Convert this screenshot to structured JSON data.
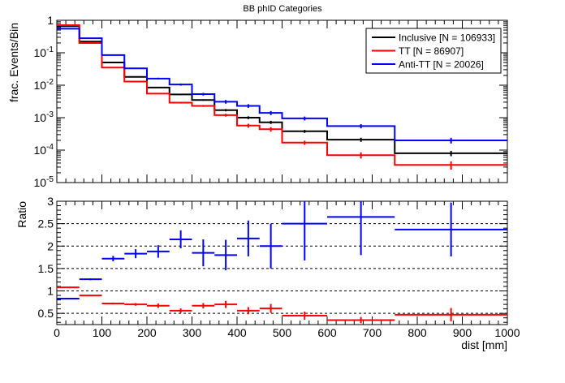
{
  "chart_data": {
    "type": "line",
    "title": "BB phID Categories",
    "xlabel": "dist [mm]",
    "bin_edges": [
      0,
      50,
      100,
      150,
      200,
      250,
      300,
      350,
      400,
      450,
      500,
      600,
      750,
      1000
    ],
    "xlim": [
      0,
      1000
    ],
    "x_ticks": [
      "0",
      "100",
      "200",
      "300",
      "400",
      "500",
      "600",
      "700",
      "800",
      "900",
      "1000"
    ],
    "top_panel": {
      "ylabel": "frac. Events/Bin",
      "ylim": [
        1e-05,
        1
      ],
      "log_y": true,
      "y_ticks": [
        "1",
        "10^-1",
        "10^-2",
        "10^-3",
        "10^-4",
        "10^-5"
      ],
      "legend_position": "top-right",
      "series": [
        {
          "name": "Inclusive [N = 106933]",
          "color": "#000000",
          "values": [
            0.66,
            0.22,
            0.05,
            0.018,
            0.0085,
            0.0052,
            0.0035,
            0.0017,
            0.001,
            0.00072,
            0.00038,
            0.00021,
            8e-05
          ],
          "errors": [
            0.003,
            0.002,
            0.0008,
            0.0004,
            0.0003,
            0.00025,
            0.0002,
            0.00014,
            0.0001,
            8e-05,
            4e-05,
            3e-05,
            1.5e-05
          ]
        },
        {
          "name": "TT [N = 86907]",
          "color": "#ff0000",
          "values": [
            0.71,
            0.2,
            0.035,
            0.013,
            0.0055,
            0.0029,
            0.0023,
            0.0012,
            0.00057,
            0.00044,
            0.00017,
            7e-05,
            3.5e-05
          ],
          "errors": [
            0.003,
            0.002,
            0.0007,
            0.0004,
            0.00025,
            0.00018,
            0.00016,
            0.00012,
            8e-05,
            7e-05,
            2.5e-05,
            1.5e-05,
            1e-05
          ]
        },
        {
          "name": "Anti-TT [N = 20026]",
          "color": "#0000ff",
          "values": [
            0.55,
            0.28,
            0.085,
            0.033,
            0.016,
            0.0105,
            0.0053,
            0.0031,
            0.0023,
            0.0014,
            0.00095,
            0.00055,
            0.0002
          ],
          "errors": [
            0.006,
            0.004,
            0.0025,
            0.0015,
            0.001,
            0.0008,
            0.0005,
            0.0004,
            0.0003,
            0.0002,
            0.00013,
            8e-05,
            4e-05
          ]
        }
      ]
    },
    "bottom_panel": {
      "ylabel": "Ratio",
      "ylim": [
        0.25,
        3
      ],
      "y_ticks": [
        "0.5",
        "1",
        "1.5",
        "2",
        "2.5",
        "3"
      ],
      "dashed_lines": [
        0.5,
        1,
        1.5,
        2,
        2.5
      ],
      "series": [
        {
          "name": "Anti-TT",
          "color": "#0000ff",
          "values": [
            0.83,
            1.26,
            1.72,
            1.83,
            1.88,
            2.15,
            1.85,
            1.8,
            2.17,
            2.0,
            2.5,
            2.65,
            2.37
          ],
          "errors": [
            0.01,
            0.02,
            0.06,
            0.1,
            0.14,
            0.2,
            0.3,
            0.34,
            0.4,
            0.5,
            0.82,
            0.85,
            0.6
          ]
        },
        {
          "name": "TT",
          "color": "#ff0000",
          "values": [
            1.08,
            0.9,
            0.72,
            0.7,
            0.67,
            0.56,
            0.67,
            0.7,
            0.56,
            0.61,
            0.45,
            0.35,
            0.47
          ],
          "errors": [
            0.01,
            0.015,
            0.02,
            0.03,
            0.05,
            0.05,
            0.06,
            0.08,
            0.08,
            0.1,
            0.09,
            0.07,
            0.15
          ]
        }
      ]
    }
  }
}
